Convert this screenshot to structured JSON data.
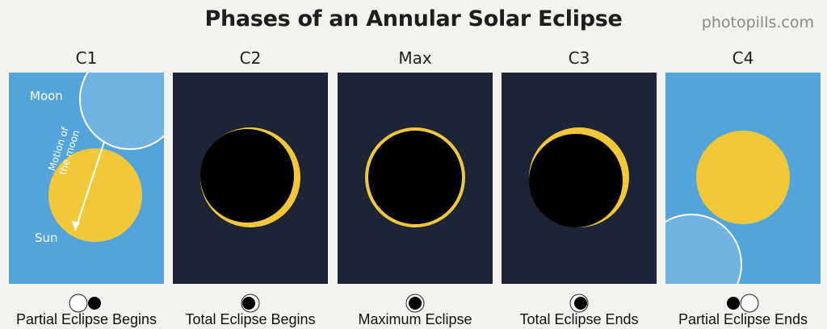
{
  "title": "Phases of an Annular Solar Eclipse",
  "brand": "photopills.com",
  "colors": {
    "sky_blue": "#54a4dc",
    "night": "#1c2436",
    "sun": "#f2c83a",
    "moon_dark": "#000000"
  },
  "phases": [
    {
      "label": "C1",
      "caption": "Partial Eclipse Begins",
      "moon_text": "Moon",
      "sun_text": "Sun",
      "motion_text_1": "Motion of",
      "motion_text_2": "the moon"
    },
    {
      "label": "C2",
      "caption": "Total Eclipse Begins"
    },
    {
      "label": "Max",
      "caption": "Maximum Eclipse"
    },
    {
      "label": "C3",
      "caption": "Total Eclipse Ends"
    },
    {
      "label": "C4",
      "caption": "Partial Eclipse Ends"
    }
  ]
}
